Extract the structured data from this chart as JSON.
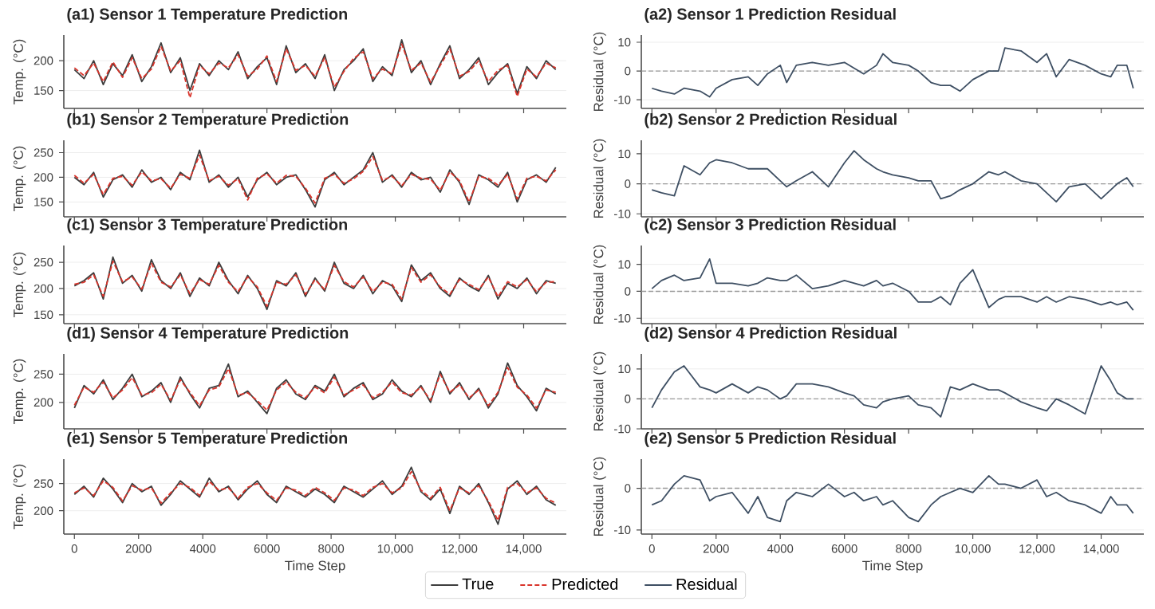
{
  "chart_data": [
    {
      "type": "line",
      "title": "(a1) Sensor 1 Temperature Prediction",
      "ylabel": "Temp. (°C)",
      "xlim": [
        -330,
        15330
      ],
      "ylim": [
        120,
        243
      ],
      "yticks": [
        150,
        200
      ],
      "xticks": [
        {
          "value": 0,
          "label": null
        },
        {
          "value": 2000,
          "label": null
        },
        {
          "value": 4000,
          "label": null
        },
        {
          "value": 6000,
          "label": null
        },
        {
          "value": 8000,
          "label": null
        },
        {
          "value": 10000,
          "label": null
        },
        {
          "value": 12000,
          "label": null
        },
        {
          "value": 14000,
          "label": null
        }
      ],
      "tick_labels": "y",
      "grid": "y",
      "x": [
        0,
        300,
        600,
        900,
        1200,
        1500,
        1800,
        2100,
        2400,
        2700,
        3000,
        3300,
        3600,
        3900,
        4200,
        4500,
        4800,
        5100,
        5400,
        5700,
        6000,
        6300,
        6600,
        6900,
        7200,
        7500,
        7800,
        8100,
        8400,
        8700,
        9000,
        9300,
        9600,
        9900,
        10200,
        10500,
        10800,
        11100,
        11400,
        11700,
        12000,
        12300,
        12600,
        12900,
        13200,
        13500,
        13800,
        14100,
        14400,
        14700,
        15000
      ],
      "series": [
        {
          "color": "#3d3d3d",
          "line_style": "solid",
          "values": [
            185,
            170,
            200,
            160,
            195,
            175,
            210,
            165,
            190,
            230,
            180,
            205,
            150,
            195,
            175,
            200,
            185,
            215,
            170,
            190,
            205,
            160,
            225,
            180,
            195,
            170,
            210,
            150,
            185,
            200,
            220,
            165,
            190,
            175,
            235,
            180,
            200,
            160,
            195,
            225,
            170,
            185,
            205,
            160,
            180,
            195,
            145,
            190,
            170,
            200,
            185
          ]
        },
        {
          "color": "#d9342b",
          "line_style": "dashed",
          "values": [
            188,
            175,
            196,
            165,
            198,
            172,
            205,
            170,
            186,
            224,
            183,
            200,
            138,
            192,
            178,
            196,
            188,
            210,
            174,
            186,
            208,
            165,
            220,
            184,
            192,
            174,
            205,
            156,
            182,
            204,
            215,
            170,
            186,
            178,
            228,
            184,
            196,
            164,
            192,
            220,
            174,
            182,
            200,
            165,
            184,
            192,
            140,
            186,
            173,
            196,
            188
          ]
        }
      ]
    },
    {
      "type": "line",
      "title": "(a2) Sensor 1 Prediction Residual",
      "ylabel": "Residual (°C)",
      "xlim": [
        -330,
        15330
      ],
      "ylim": [
        -13,
        12.5
      ],
      "yticks": [
        -10,
        0,
        10
      ],
      "xticks": [
        {
          "value": 0,
          "label": null
        },
        {
          "value": 2000,
          "label": null
        },
        {
          "value": 4000,
          "label": null
        },
        {
          "value": 6000,
          "label": null
        },
        {
          "value": 8000,
          "label": null
        },
        {
          "value": 10000,
          "label": null
        },
        {
          "value": 12000,
          "label": null
        },
        {
          "value": 14000,
          "label": null
        }
      ],
      "tick_labels": "y",
      "grid": "y",
      "ref_lines": [
        {
          "axis": "y",
          "value": 0,
          "color": "#999999",
          "line_style": "dashed"
        }
      ],
      "x": [
        0,
        300,
        700,
        1000,
        1500,
        1800,
        2000,
        2500,
        3000,
        3300,
        3600,
        4000,
        4200,
        4500,
        5000,
        5500,
        6000,
        6300,
        6600,
        7000,
        7200,
        7500,
        8000,
        8300,
        8700,
        9000,
        9300,
        9600,
        10000,
        10500,
        10800,
        11000,
        11500,
        12000,
        12300,
        12600,
        13000,
        13500,
        14000,
        14300,
        14500,
        14800,
        15000
      ],
      "series": [
        {
          "color": "#3e4f63",
          "line_style": "solid",
          "values": [
            -6,
            -7,
            -8,
            -6,
            -7,
            -9,
            -6,
            -3,
            -2,
            -5,
            -1,
            2,
            -4,
            2,
            3,
            2,
            3,
            1,
            -1,
            2,
            6,
            3,
            2,
            0,
            -4,
            -5,
            -5,
            -7,
            -3,
            0,
            0,
            8,
            7,
            3,
            6,
            -2,
            4,
            2,
            -1,
            -2,
            2,
            2,
            -6
          ]
        }
      ]
    },
    {
      "type": "line",
      "title": "(b1) Sensor 2 Temperature Prediction",
      "ylabel": "Temp. (°C)",
      "xlim": [
        -330,
        15330
      ],
      "ylim": [
        120,
        275
      ],
      "yticks": [
        150,
        200,
        250
      ],
      "xticks": [
        {
          "value": 0,
          "label": null
        },
        {
          "value": 2000,
          "label": null
        },
        {
          "value": 4000,
          "label": null
        },
        {
          "value": 6000,
          "label": null
        },
        {
          "value": 8000,
          "label": null
        },
        {
          "value": 10000,
          "label": null
        },
        {
          "value": 12000,
          "label": null
        },
        {
          "value": 14000,
          "label": null
        }
      ],
      "tick_labels": "y",
      "grid": "y",
      "x": [
        0,
        300,
        600,
        900,
        1200,
        1500,
        1800,
        2100,
        2400,
        2700,
        3000,
        3300,
        3600,
        3900,
        4200,
        4500,
        4800,
        5100,
        5400,
        5700,
        6000,
        6300,
        6600,
        6900,
        7200,
        7500,
        7800,
        8100,
        8400,
        8700,
        9000,
        9300,
        9600,
        9900,
        10200,
        10500,
        10800,
        11100,
        11400,
        11700,
        12000,
        12300,
        12600,
        12900,
        13200,
        13500,
        13800,
        14100,
        14400,
        14700,
        15000
      ],
      "series": [
        {
          "color": "#3d3d3d",
          "line_style": "solid",
          "values": [
            200,
            185,
            210,
            160,
            195,
            205,
            180,
            215,
            190,
            200,
            175,
            210,
            195,
            255,
            190,
            205,
            180,
            200,
            160,
            195,
            210,
            185,
            200,
            205,
            175,
            140,
            195,
            210,
            185,
            200,
            215,
            250,
            190,
            205,
            180,
            210,
            195,
            200,
            170,
            215,
            190,
            145,
            205,
            195,
            180,
            210,
            150,
            195,
            205,
            190,
            220
          ]
        },
        {
          "color": "#d9342b",
          "line_style": "dashed",
          "values": [
            204,
            188,
            206,
            165,
            198,
            202,
            184,
            211,
            193,
            197,
            178,
            206,
            198,
            245,
            193,
            202,
            184,
            197,
            154,
            198,
            207,
            188,
            204,
            202,
            178,
            148,
            198,
            206,
            188,
            197,
            212,
            242,
            194,
            202,
            183,
            206,
            198,
            196,
            174,
            211,
            193,
            150,
            202,
            198,
            184,
            206,
            156,
            198,
            202,
            193,
            215
          ]
        }
      ]
    },
    {
      "type": "line",
      "title": "(b2) Sensor 2 Prediction Residual",
      "ylabel": "Residual (°C)",
      "xlim": [
        -330,
        15330
      ],
      "ylim": [
        -11,
        14.5
      ],
      "yticks": [
        -10,
        0,
        10
      ],
      "xticks": [
        {
          "value": 0,
          "label": null
        },
        {
          "value": 2000,
          "label": null
        },
        {
          "value": 4000,
          "label": null
        },
        {
          "value": 6000,
          "label": null
        },
        {
          "value": 8000,
          "label": null
        },
        {
          "value": 10000,
          "label": null
        },
        {
          "value": 12000,
          "label": null
        },
        {
          "value": 14000,
          "label": null
        }
      ],
      "tick_labels": "y",
      "grid": "y",
      "ref_lines": [
        {
          "axis": "y",
          "value": 0,
          "color": "#999999",
          "line_style": "dashed"
        }
      ],
      "x": [
        0,
        300,
        700,
        1000,
        1500,
        1800,
        2000,
        2500,
        3000,
        3300,
        3600,
        4000,
        4200,
        4500,
        5000,
        5500,
        6000,
        6300,
        6600,
        7000,
        7200,
        7500,
        8000,
        8300,
        8700,
        9000,
        9300,
        9600,
        10000,
        10500,
        10800,
        11000,
        11500,
        12000,
        12300,
        12600,
        13000,
        13500,
        14000,
        14300,
        14500,
        14800,
        15000
      ],
      "series": [
        {
          "color": "#3e4f63",
          "line_style": "solid",
          "values": [
            -2,
            -3,
            -4,
            6,
            3,
            7,
            8,
            7,
            5,
            5,
            5,
            1,
            -1,
            1,
            4,
            -1,
            7,
            11,
            8,
            5,
            4,
            3,
            2,
            1,
            1,
            -5,
            -4,
            -2,
            0,
            4,
            3,
            4,
            1,
            0,
            -3,
            -6,
            -1,
            0,
            -5,
            -2,
            0,
            2,
            -1
          ]
        }
      ]
    },
    {
      "type": "line",
      "title": "(c1) Sensor 3 Temperature Prediction",
      "ylabel": "Temp. (°C)",
      "xlim": [
        -330,
        15330
      ],
      "ylim": [
        133,
        282
      ],
      "yticks": [
        150,
        200,
        250
      ],
      "xticks": [
        {
          "value": 0,
          "label": null
        },
        {
          "value": 2000,
          "label": null
        },
        {
          "value": 4000,
          "label": null
        },
        {
          "value": 6000,
          "label": null
        },
        {
          "value": 8000,
          "label": null
        },
        {
          "value": 10000,
          "label": null
        },
        {
          "value": 12000,
          "label": null
        },
        {
          "value": 14000,
          "label": null
        }
      ],
      "tick_labels": "y",
      "grid": "y",
      "x": [
        0,
        300,
        600,
        900,
        1200,
        1500,
        1800,
        2100,
        2400,
        2700,
        3000,
        3300,
        3600,
        3900,
        4200,
        4500,
        4800,
        5100,
        5400,
        5700,
        6000,
        6300,
        6600,
        6900,
        7200,
        7500,
        7800,
        8100,
        8400,
        8700,
        9000,
        9300,
        9600,
        9900,
        10200,
        10500,
        10800,
        11100,
        11400,
        11700,
        12000,
        12300,
        12600,
        12900,
        13200,
        13500,
        13800,
        14100,
        14400,
        14700,
        15000
      ],
      "series": [
        {
          "color": "#3d3d3d",
          "line_style": "solid",
          "values": [
            205,
            215,
            230,
            180,
            260,
            210,
            225,
            195,
            255,
            215,
            200,
            230,
            185,
            220,
            205,
            250,
            215,
            190,
            225,
            200,
            160,
            215,
            205,
            230,
            185,
            220,
            195,
            250,
            210,
            200,
            225,
            190,
            215,
            205,
            175,
            245,
            215,
            230,
            200,
            185,
            220,
            205,
            195,
            225,
            180,
            210,
            200,
            220,
            190,
            215,
            210
          ]
        },
        {
          "color": "#d9342b",
          "line_style": "dashed",
          "values": [
            208,
            212,
            226,
            185,
            252,
            213,
            222,
            199,
            248,
            212,
            203,
            226,
            190,
            217,
            208,
            244,
            212,
            194,
            222,
            203,
            166,
            212,
            208,
            226,
            189,
            217,
            198,
            244,
            213,
            203,
            222,
            194,
            212,
            208,
            180,
            240,
            212,
            226,
            203,
            189,
            217,
            208,
            198,
            222,
            184,
            213,
            203,
            217,
            194,
            212,
            213
          ]
        }
      ]
    },
    {
      "type": "line",
      "title": "(c2) Sensor 3 Prediction Residual",
      "ylabel": "Residual (°C)",
      "xlim": [
        -330,
        15330
      ],
      "ylim": [
        -12,
        17
      ],
      "yticks": [
        -10,
        0,
        10
      ],
      "xticks": [
        {
          "value": 0,
          "label": null
        },
        {
          "value": 2000,
          "label": null
        },
        {
          "value": 4000,
          "label": null
        },
        {
          "value": 6000,
          "label": null
        },
        {
          "value": 8000,
          "label": null
        },
        {
          "value": 10000,
          "label": null
        },
        {
          "value": 12000,
          "label": null
        },
        {
          "value": 14000,
          "label": null
        }
      ],
      "tick_labels": "y",
      "grid": "y",
      "ref_lines": [
        {
          "axis": "y",
          "value": 0,
          "color": "#999999",
          "line_style": "dashed"
        }
      ],
      "x": [
        0,
        300,
        700,
        1000,
        1500,
        1800,
        2000,
        2500,
        3000,
        3300,
        3600,
        4000,
        4200,
        4500,
        5000,
        5500,
        6000,
        6300,
        6600,
        7000,
        7200,
        7500,
        8000,
        8300,
        8700,
        9000,
        9300,
        9600,
        10000,
        10500,
        10800,
        11000,
        11500,
        12000,
        12300,
        12600,
        13000,
        13500,
        14000,
        14300,
        14500,
        14800,
        15000
      ],
      "series": [
        {
          "color": "#3e4f63",
          "line_style": "solid",
          "values": [
            1,
            4,
            6,
            4,
            5,
            12,
            3,
            3,
            2,
            3,
            5,
            4,
            4,
            6,
            1,
            2,
            4,
            3,
            2,
            4,
            2,
            3,
            0,
            -4,
            -4,
            -2,
            -5,
            3,
            8,
            -6,
            -3,
            -2,
            -2,
            -4,
            -2,
            -4,
            -2,
            -3,
            -5,
            -4,
            -5,
            -4,
            -7
          ]
        }
      ]
    },
    {
      "type": "line",
      "title": "(d1) Sensor 4 Temperature Prediction",
      "ylabel": "Temp. (°C)",
      "xlim": [
        -330,
        15330
      ],
      "ylim": [
        153,
        286
      ],
      "yticks": [
        200,
        250
      ],
      "xticks": [
        {
          "value": 0,
          "label": null
        },
        {
          "value": 2000,
          "label": null
        },
        {
          "value": 4000,
          "label": null
        },
        {
          "value": 6000,
          "label": null
        },
        {
          "value": 8000,
          "label": null
        },
        {
          "value": 10000,
          "label": null
        },
        {
          "value": 12000,
          "label": null
        },
        {
          "value": 14000,
          "label": null
        }
      ],
      "tick_labels": "y",
      "grid": "y",
      "x": [
        0,
        300,
        600,
        900,
        1200,
        1500,
        1800,
        2100,
        2400,
        2700,
        3000,
        3300,
        3600,
        3900,
        4200,
        4500,
        4800,
        5100,
        5400,
        5700,
        6000,
        6300,
        6600,
        6900,
        7200,
        7500,
        7800,
        8100,
        8400,
        8700,
        9000,
        9300,
        9600,
        9900,
        10200,
        10500,
        10800,
        11100,
        11400,
        11700,
        12000,
        12300,
        12600,
        12900,
        13200,
        13500,
        13800,
        14100,
        14400,
        14700,
        15000
      ],
      "series": [
        {
          "color": "#3d3d3d",
          "line_style": "solid",
          "values": [
            190,
            230,
            215,
            240,
            205,
            225,
            250,
            210,
            220,
            235,
            200,
            245,
            215,
            190,
            225,
            230,
            268,
            210,
            220,
            200,
            180,
            225,
            240,
            215,
            205,
            230,
            220,
            250,
            210,
            225,
            235,
            205,
            215,
            240,
            220,
            210,
            230,
            200,
            255,
            215,
            235,
            205,
            225,
            190,
            215,
            270,
            230,
            210,
            185,
            225,
            215
          ]
        },
        {
          "color": "#d9342b",
          "line_style": "dashed",
          "values": [
            195,
            227,
            218,
            236,
            208,
            222,
            244,
            213,
            217,
            232,
            204,
            240,
            218,
            194,
            222,
            227,
            260,
            213,
            217,
            203,
            186,
            222,
            236,
            218,
            208,
            227,
            217,
            245,
            213,
            222,
            231,
            208,
            218,
            236,
            217,
            213,
            227,
            204,
            250,
            218,
            231,
            208,
            222,
            194,
            218,
            262,
            227,
            213,
            190,
            222,
            218
          ]
        }
      ]
    },
    {
      "type": "line",
      "title": "(d2) Sensor 4 Prediction Residual",
      "ylabel": "Residual (°C)",
      "xlim": [
        -330,
        15330
      ],
      "ylim": [
        -10,
        15
      ],
      "yticks": [
        -10,
        0,
        10
      ],
      "xticks": [
        {
          "value": 0,
          "label": null
        },
        {
          "value": 2000,
          "label": null
        },
        {
          "value": 4000,
          "label": null
        },
        {
          "value": 6000,
          "label": null
        },
        {
          "value": 8000,
          "label": null
        },
        {
          "value": 10000,
          "label": null
        },
        {
          "value": 12000,
          "label": null
        },
        {
          "value": 14000,
          "label": null
        }
      ],
      "tick_labels": "y",
      "grid": "y",
      "ref_lines": [
        {
          "axis": "y",
          "value": 0,
          "color": "#999999",
          "line_style": "dashed"
        }
      ],
      "x": [
        0,
        300,
        700,
        1000,
        1500,
        1800,
        2000,
        2500,
        3000,
        3300,
        3600,
        4000,
        4200,
        4500,
        5000,
        5500,
        6000,
        6300,
        6600,
        7000,
        7200,
        7500,
        8000,
        8300,
        8700,
        9000,
        9300,
        9600,
        10000,
        10500,
        10800,
        11000,
        11500,
        12000,
        12300,
        12600,
        13000,
        13500,
        14000,
        14300,
        14500,
        14800,
        15000
      ],
      "series": [
        {
          "color": "#3e4f63",
          "line_style": "solid",
          "values": [
            -3,
            3,
            9,
            11,
            4,
            3,
            2,
            5,
            2,
            4,
            3,
            0,
            1,
            5,
            5,
            4,
            2,
            1,
            -2,
            -3,
            -1,
            0,
            1,
            -2,
            -3,
            -6,
            4,
            3,
            5,
            3,
            3,
            2,
            -1,
            -3,
            -4,
            0,
            -2,
            -5,
            11,
            6,
            2,
            0,
            0
          ]
        }
      ]
    },
    {
      "type": "line",
      "title": "(e1) Sensor 5 Temperature Prediction",
      "ylabel": "Temp. (°C)",
      "xlabel": "Time Step",
      "xlim": [
        -330,
        15330
      ],
      "ylim": [
        157,
        295
      ],
      "yticks": [
        200,
        250
      ],
      "xticks": [
        0,
        2000,
        4000,
        6000,
        8000,
        {
          "value": 10000,
          "label": "10,000"
        },
        {
          "value": 12000,
          "label": "12,000"
        },
        {
          "value": 14000,
          "label": "14,000"
        }
      ],
      "grid": "y",
      "legend": "bottom",
      "x": [
        0,
        300,
        600,
        900,
        1200,
        1500,
        1800,
        2100,
        2400,
        2700,
        3000,
        3300,
        3600,
        3900,
        4200,
        4500,
        4800,
        5100,
        5400,
        5700,
        6000,
        6300,
        6600,
        6900,
        7200,
        7500,
        7800,
        8100,
        8400,
        8700,
        9000,
        9300,
        9600,
        9900,
        10200,
        10500,
        10800,
        11100,
        11400,
        11700,
        12000,
        12300,
        12600,
        12900,
        13200,
        13500,
        13800,
        14100,
        14400,
        14700,
        15000
      ],
      "series": [
        {
          "name": "True",
          "color": "#3d3d3d",
          "line_style": "solid",
          "values": [
            230,
            245,
            225,
            260,
            240,
            215,
            250,
            235,
            245,
            210,
            230,
            255,
            240,
            225,
            260,
            235,
            245,
            220,
            240,
            255,
            230,
            215,
            245,
            235,
            225,
            240,
            230,
            215,
            245,
            235,
            225,
            240,
            255,
            230,
            245,
            280,
            235,
            220,
            240,
            195,
            245,
            230,
            250,
            215,
            175,
            240,
            255,
            230,
            245,
            220,
            210
          ]
        },
        {
          "name": "Predicted",
          "color": "#d9342b",
          "line_style": "dashed",
          "values": [
            233,
            242,
            228,
            255,
            243,
            218,
            246,
            238,
            242,
            214,
            233,
            250,
            243,
            228,
            254,
            238,
            242,
            223,
            243,
            250,
            233,
            219,
            242,
            238,
            228,
            243,
            233,
            219,
            242,
            238,
            228,
            243,
            250,
            233,
            242,
            272,
            238,
            223,
            243,
            200,
            242,
            233,
            246,
            218,
            182,
            243,
            250,
            233,
            242,
            223,
            214
          ]
        }
      ]
    },
    {
      "type": "line",
      "title": "(e2) Sensor 5 Prediction Residual",
      "ylabel": "Residual (°C)",
      "xlabel": "Time Step",
      "xlim": [
        -330,
        15330
      ],
      "ylim": [
        -11,
        7
      ],
      "yticks": [
        -10,
        0
      ],
      "xticks": [
        0,
        2000,
        4000,
        6000,
        8000,
        {
          "value": 10000,
          "label": "10,000"
        },
        {
          "value": 12000,
          "label": "12,000"
        },
        {
          "value": 14000,
          "label": "14,000"
        }
      ],
      "grid": "y",
      "ref_lines": [
        {
          "axis": "y",
          "value": 0,
          "color": "#999999",
          "line_style": "dashed"
        }
      ],
      "x": [
        0,
        300,
        700,
        1000,
        1500,
        1800,
        2000,
        2500,
        3000,
        3300,
        3600,
        4000,
        4200,
        4500,
        5000,
        5500,
        6000,
        6300,
        6600,
        7000,
        7200,
        7500,
        8000,
        8300,
        8700,
        9000,
        9300,
        9600,
        10000,
        10500,
        10800,
        11000,
        11500,
        12000,
        12300,
        12600,
        13000,
        13500,
        14000,
        14300,
        14500,
        14800,
        15000
      ],
      "series": [
        {
          "name": "Residual",
          "color": "#3e4f63",
          "line_style": "solid",
          "values": [
            -4,
            -3,
            1,
            3,
            2,
            -3,
            -2,
            -1,
            -6,
            -2,
            -7,
            -8,
            -3,
            -1,
            -2,
            1,
            -2,
            -1,
            -3,
            -2,
            -4,
            -3,
            -7,
            -8,
            -4,
            -2,
            -1,
            0,
            -1,
            3,
            1,
            1,
            0,
            2,
            -2,
            -1,
            -3,
            -4,
            -6,
            -2,
            -4,
            -4,
            -6
          ]
        }
      ]
    }
  ]
}
